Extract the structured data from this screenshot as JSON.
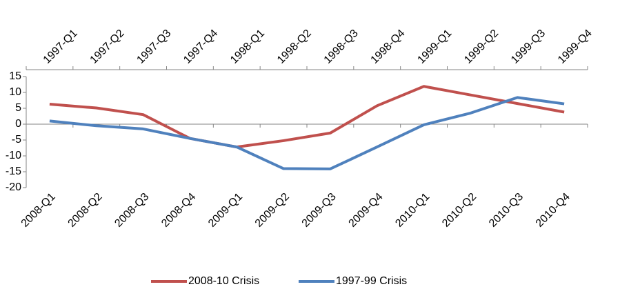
{
  "chart_data": {
    "type": "line",
    "categories": [
      "2008-Q1",
      "2008-Q2",
      "2008-Q3",
      "2008-Q4",
      "2009-Q1",
      "2009-Q2",
      "2009-Q3",
      "2009-Q4",
      "2010-Q1",
      "2010-Q2",
      "2010-Q3",
      "2010-Q4"
    ],
    "x2categories": [
      "1997-Q1",
      "1997-Q2",
      "1997-Q3",
      "1997-Q4",
      "1998-Q1",
      "1998-Q2",
      "1998-Q3",
      "1998-Q4",
      "1999-Q1",
      "1999-Q2",
      "1999-Q3",
      "1999-Q4"
    ],
    "series": [
      {
        "name": "2008-10 Crisis",
        "color": "#c0504d",
        "values": [
          6.3,
          5.1,
          3.0,
          -4.5,
          -7.2,
          -5.2,
          -2.8,
          5.8,
          11.9,
          9.2,
          6.5,
          3.8
        ]
      },
      {
        "name": "1997-99 Crisis",
        "color": "#4f81bd",
        "axis": "x2",
        "values": [
          1.0,
          -0.5,
          -1.5,
          -4.5,
          -7.2,
          -14.0,
          -14.1,
          -7.2,
          -0.2,
          3.5,
          8.4,
          6.4
        ]
      }
    ],
    "ylim": [
      -20,
      15
    ],
    "yticks": [
      -20,
      -15,
      -10,
      -5,
      0,
      5,
      10,
      15
    ],
    "grid": false,
    "legend": "bottom"
  }
}
